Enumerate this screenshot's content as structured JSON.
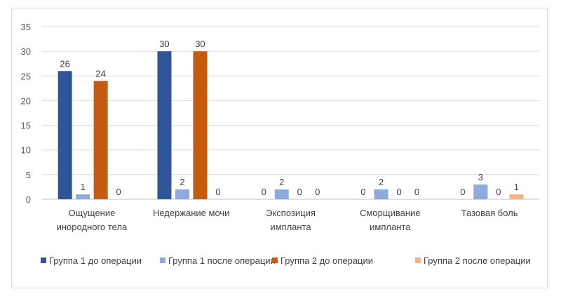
{
  "chart_data": {
    "type": "bar",
    "title": "",
    "xlabel": "",
    "ylabel": "",
    "ylim": [
      0,
      35
    ],
    "yticks": [
      0,
      5,
      10,
      15,
      20,
      25,
      30,
      35
    ],
    "grid": true,
    "legend_position": "bottom",
    "categories": [
      [
        "Ощущение",
        "инородного тела"
      ],
      [
        "Недержание мочи"
      ],
      [
        "Экспозиция",
        "импланта"
      ],
      [
        "Сморщивание",
        "импланта"
      ],
      [
        "Тазовая боль"
      ]
    ],
    "series": [
      {
        "name": "Группа 1 до операции",
        "color": "#2e5597",
        "values": [
          26,
          30,
          0,
          0,
          0
        ]
      },
      {
        "name": "Группа 1 после операции",
        "color": "#8faadc",
        "values": [
          1,
          2,
          2,
          2,
          3
        ]
      },
      {
        "name": "Группа 2 до операции",
        "color": "#c55a11",
        "values": [
          24,
          30,
          0,
          0,
          0
        ]
      },
      {
        "name": "Группа 2 после операции",
        "color": "#f4b183",
        "values": [
          0,
          0,
          0,
          0,
          1
        ]
      }
    ]
  }
}
